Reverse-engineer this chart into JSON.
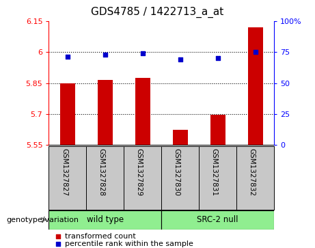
{
  "title": "GDS4785 / 1422713_a_at",
  "samples": [
    "GSM1327827",
    "GSM1327828",
    "GSM1327829",
    "GSM1327830",
    "GSM1327831",
    "GSM1327832"
  ],
  "bar_values": [
    5.848,
    5.865,
    5.875,
    5.625,
    5.695,
    6.12
  ],
  "bar_bottom": 5.55,
  "dot_values": [
    71,
    73,
    74,
    69,
    70,
    75
  ],
  "ylim_left": [
    5.55,
    6.15
  ],
  "ylim_right": [
    0,
    100
  ],
  "yticks_left": [
    5.55,
    5.7,
    5.85,
    6.0,
    6.15
  ],
  "yticks_right": [
    0,
    25,
    50,
    75,
    100
  ],
  "yticklabels_left": [
    "5.55",
    "5.7",
    "5.85",
    "6",
    "6.15"
  ],
  "yticklabels_right": [
    "0",
    "25",
    "50",
    "75",
    "100%"
  ],
  "hlines": [
    5.7,
    5.85,
    6.0
  ],
  "bar_color": "#cc0000",
  "dot_color": "#0000cc",
  "group1_label": "wild type",
  "group2_label": "SRC-2 null",
  "group_color": "#90ee90",
  "genotype_label": "genotype/variation",
  "legend_bar_label": "transformed count",
  "legend_dot_label": "percentile rank within the sample",
  "sample_bg": "#c8c8c8",
  "title_fontsize": 11,
  "tick_fontsize": 8,
  "label_fontsize": 7.5,
  "group_fontsize": 8.5,
  "legend_fontsize": 8,
  "genotype_fontsize": 8
}
